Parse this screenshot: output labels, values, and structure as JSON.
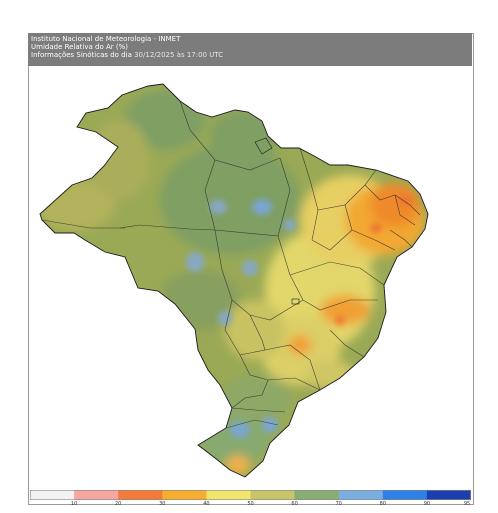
{
  "header": {
    "line1": "Instituto Nacional de Meteorologia - INMET",
    "line2": "Umidade Relativa do Ar (%)",
    "line3_prefix": "Informações Sinóticas do dia",
    "line3_date": "30/12/2025 às 17:00 UTC"
  },
  "legend": {
    "colors": [
      "#f2f2f2",
      "#f4a6a0",
      "#f37a3a",
      "#f7ad2f",
      "#f0e66e",
      "#c8c46a",
      "#88ad72",
      "#7aaee0",
      "#2f7fe8",
      "#1b3fae"
    ],
    "ticks": [
      "10",
      "20",
      "30",
      "40",
      "50",
      "60",
      "70",
      "80",
      "90",
      "95"
    ]
  },
  "map": {
    "background": "#ffffff",
    "base_color": "#9aaa55"
  }
}
